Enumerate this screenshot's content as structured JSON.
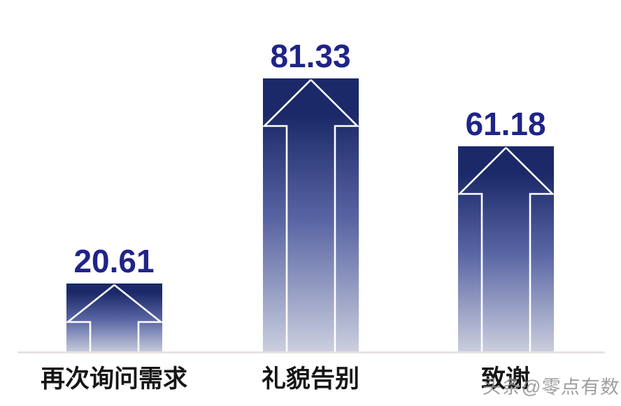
{
  "chart_data": {
    "type": "bar",
    "categories": [
      "再次询问需求",
      "礼貌告别",
      "致谢"
    ],
    "values": [
      20.61,
      81.33,
      61.18
    ],
    "value_labels": [
      "20.61",
      "81.33",
      "61.18"
    ],
    "title": "",
    "xlabel": "",
    "ylabel": "",
    "ylim": [
      0,
      85
    ],
    "grid": false,
    "legend": "none",
    "bar_shape": "gradient-block-arrow-up",
    "colors": {
      "bar_gradient_top": "#1b2969",
      "bar_gradient_mid": "#5a66a4",
      "bar_gradient_bottom": "#ccd0df",
      "arrow_outline": "#ffffff",
      "value_text": "#1f2487",
      "category_text": "#161616",
      "axis_line": "#e7e3e0"
    }
  },
  "watermark": {
    "text": "头条@零点有数",
    "color": "#8f8f8f"
  }
}
